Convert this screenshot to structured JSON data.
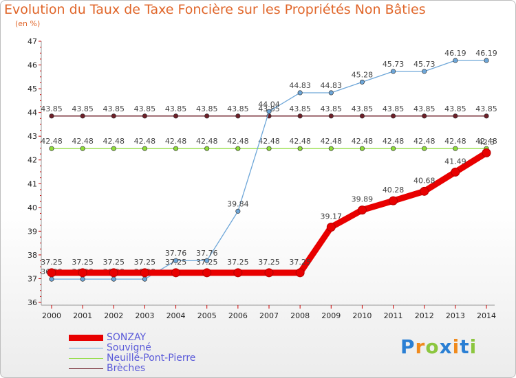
{
  "chart_data": {
    "type": "line",
    "title": "Evolution du Taux de Taxe Foncière sur les Propriétés Non Bâties",
    "subtitle": "(en %)",
    "x": [
      "2000",
      "2001",
      "2002",
      "2003",
      "2004",
      "2005",
      "2006",
      "2007",
      "2008",
      "2009",
      "2010",
      "2011",
      "2012",
      "2013",
      "2014"
    ],
    "yticks": [
      36,
      37,
      38,
      39,
      40,
      41,
      42,
      43,
      44,
      45,
      46,
      47
    ],
    "ylim": [
      36,
      47
    ],
    "grid": false,
    "legend_position": "bottom-left",
    "series": [
      {
        "name": "Brèches",
        "color": "#6e1f28",
        "values": [
          43.85,
          43.85,
          43.85,
          43.85,
          43.85,
          43.85,
          43.85,
          43.85,
          43.85,
          43.85,
          43.85,
          43.85,
          43.85,
          43.85,
          43.85
        ],
        "labels": [
          "43.85",
          "43.85",
          "43.85",
          "43.85",
          "43.85",
          "43.85",
          "43.85",
          "43.85",
          "43.85",
          "43.85",
          "43.85",
          "43.85",
          "43.85",
          "43.85",
          "43.85"
        ]
      },
      {
        "name": "Neuillé-Pont-Pierre",
        "color": "#8edc3a",
        "values": [
          42.48,
          42.48,
          42.48,
          42.48,
          42.48,
          42.48,
          42.48,
          42.48,
          42.48,
          42.48,
          42.48,
          42.48,
          42.48,
          42.48,
          42.48
        ],
        "labels": [
          "42.48",
          "42.48",
          "42.48",
          "42.48",
          "42.48",
          "42.48",
          "42.48",
          "42.48",
          "42.48",
          "42.48",
          "42.48",
          "42.48",
          "42.48",
          "42.48",
          "42.48"
        ]
      },
      {
        "name": "Souvigné",
        "color": "#6da6d8",
        "values": [
          36.98,
          36.98,
          36.98,
          36.98,
          37.76,
          37.76,
          39.84,
          44.04,
          44.83,
          44.83,
          45.28,
          45.73,
          45.73,
          46.19,
          46.19
        ],
        "labels": [
          "36.98",
          "36.98",
          "36.98",
          "36.98",
          "37.76",
          "37.76",
          "39.84",
          "44.04",
          "44.83",
          "44.83",
          "45.28",
          "45.73",
          "45.73",
          "46.19",
          "46.19"
        ]
      },
      {
        "name": "SONZAY",
        "color": "#e80000",
        "values": [
          37.25,
          37.25,
          37.25,
          37.25,
          37.25,
          37.25,
          37.25,
          37.25,
          37.25,
          39.17,
          39.89,
          40.28,
          40.68,
          41.49,
          42.3
        ],
        "labels": [
          "37.25",
          "37.25",
          "37.25",
          "37.25",
          "37.25",
          "37.25",
          "37.25",
          "37.25",
          "37.25",
          "39.17",
          "39.89",
          "40.28",
          "40.68",
          "41.49",
          "42.3"
        ]
      }
    ]
  },
  "legend": [
    "SONZAY",
    "Souvigné",
    "Neuillé-Pont-Pierre",
    "Brèches"
  ],
  "logo": {
    "letters": [
      "P",
      "r",
      "o",
      "x",
      "i",
      "t",
      "i"
    ],
    "colors": [
      "#2a7fd4",
      "#f08a1c",
      "#8cc63f",
      "#2a7fd4",
      "#f08a1c",
      "#2a7fd4",
      "#8cc63f"
    ]
  }
}
